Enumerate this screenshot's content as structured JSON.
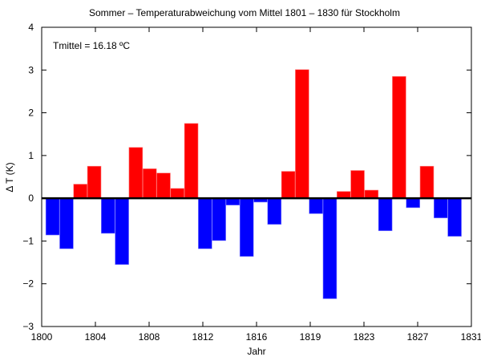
{
  "chart_data": {
    "type": "bar",
    "title": "Sommer – Temperaturabweichung vom Mittel 1801 – 1830 für Stockholm",
    "annotation": "Tmittel = 16.18 ºC",
    "xlabel": "Jahr",
    "ylabel": "Δ T (K)",
    "xlim": [
      1800,
      1831
    ],
    "ylim": [
      -3,
      4
    ],
    "xticks": [
      1800,
      1803.875,
      1807.75,
      1811.625,
      1815.5,
      1819.375,
      1823.25,
      1827.125,
      1831
    ],
    "xtick_labels": [
      "1800",
      "1804",
      "1808",
      "1812",
      "1816",
      "1819",
      "1823",
      "1827",
      "1831"
    ],
    "yticks": [
      -3,
      -2,
      -1,
      0,
      1,
      2,
      3,
      4
    ],
    "ytick_labels": [
      "−3",
      "−2",
      "−1",
      "0",
      "1",
      "2",
      "3",
      "4"
    ],
    "grid": false,
    "positive_color": "#ff0000",
    "negative_color": "#0000ff",
    "x": [
      1801,
      1802,
      1803,
      1804,
      1805,
      1806,
      1807,
      1808,
      1809,
      1810,
      1811,
      1812,
      1813,
      1814,
      1815,
      1816,
      1817,
      1818,
      1819,
      1820,
      1821,
      1822,
      1823,
      1824,
      1825,
      1826,
      1827,
      1828,
      1829,
      1830
    ],
    "values": [
      -0.86,
      -1.18,
      0.33,
      0.75,
      -0.82,
      -1.55,
      1.19,
      0.69,
      0.59,
      0.23,
      1.75,
      -1.18,
      -0.99,
      -0.16,
      -1.36,
      -0.09,
      -0.61,
      0.63,
      3.01,
      -0.36,
      -2.35,
      0.16,
      0.65,
      0.19,
      -0.76,
      2.85,
      -0.22,
      0.75,
      -0.46,
      -0.89
    ]
  }
}
